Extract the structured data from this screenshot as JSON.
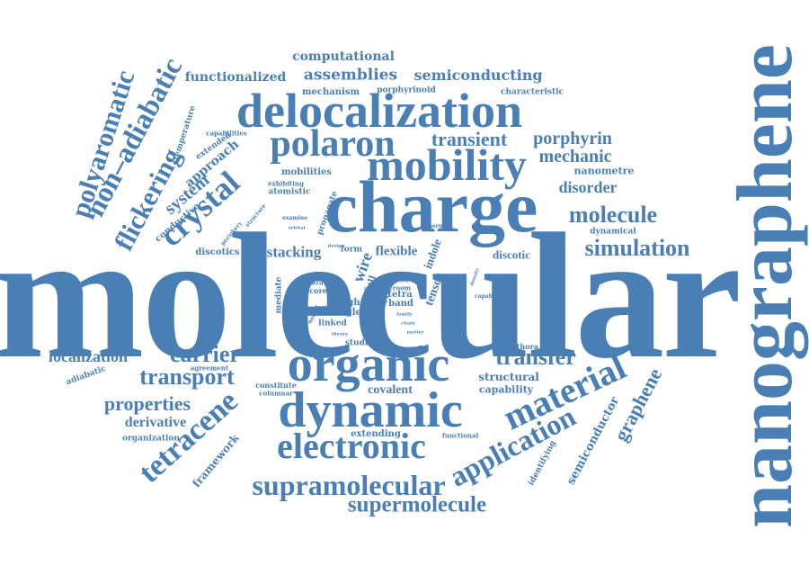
{
  "cloud": {
    "color": "#4a7fb5",
    "background": "#ffffff",
    "words": {
      "molecular": "molecular",
      "nanographene": "nanographene",
      "charge": "charge",
      "mobility": "mobility",
      "delocalization": "delocalization",
      "organic": "organic",
      "dynamic": "dynamic",
      "electronic": "electronic",
      "polaron": "polaron",
      "material": "material",
      "supramolecular": "supramolecular",
      "supermolecule": "supermolecule",
      "application": "application",
      "tetracene": "tetracene",
      "non_adiabatic": "non–adiabatic",
      "polyaromatic": "polyaromatic",
      "flickering": "flickering",
      "crystal": "crystal",
      "system": "system",
      "simulation": "simulation",
      "molecule": "molecule",
      "transient": "transient",
      "porphyrin": "porphyrin",
      "mechanic": "mechanic",
      "disorder": "disorder",
      "transfer": "transfer",
      "transport": "transport",
      "carrier": "carrier",
      "localization": "localization",
      "properties": "properties",
      "derivative": "derivative",
      "graphene": "graphene",
      "semiconductor": "semiconductor",
      "assemblies": "assemblies",
      "functionalized": "functionalized",
      "semiconducting": "semiconducting",
      "computational": "computational",
      "mechanism": "mechanism",
      "porphyrinoid": "porphyrinoid",
      "characteristic": "characteristic",
      "temperature": "temperature",
      "capabilities": "capabilities",
      "extended": "extended",
      "approach": "approach",
      "conductive": "conductive",
      "discotics": "discotics",
      "periphery": "periphery",
      "structure": "structure",
      "mobilities": "mobilities",
      "exhibiting": "exhibiting",
      "atomistic": "atomistic",
      "examine": "examine",
      "orbital": "orbital",
      "propagate": "propagate",
      "nanometre": "nanometre",
      "dynamical": "dynamical",
      "thermal": "thermal",
      "stacking": "stacking",
      "flexible": "flexible",
      "discotic": "discotic",
      "indole": "indole",
      "wire": "wire",
      "tensor": "tensor",
      "mediate": "mediate",
      "nature": "nature",
      "core": "core",
      "form": "form",
      "design": "design",
      "full": "full",
      "effect": "effect",
      "tetra": "tetra",
      "band": "band",
      "room": "room",
      "hole": "hole",
      "high": "high",
      "single": "single",
      "linked": "linked",
      "study": "study",
      "level": "level",
      "novel": "novel",
      "family": "family",
      "chain": "chain",
      "matter": "matter",
      "theory": "theory",
      "density": "density",
      "capable": "capable",
      "work": "work",
      "time": "time",
      "value": "value",
      "series": "series",
      "studies": "studies",
      "plethora": "plethora",
      "structural": "structural",
      "capability": "capability",
      "covalent": "covalent",
      "constitute": "constitute",
      "columnar": "columnar",
      "agreement": "agreement",
      "adiabatic": "adiabatic",
      "organization": "organization",
      "framework": "framework",
      "extending": "extending",
      "functional": "functional",
      "identifying": "identifying"
    }
  }
}
